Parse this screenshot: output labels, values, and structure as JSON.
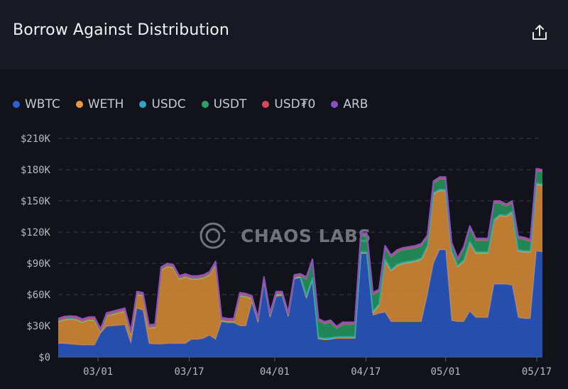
{
  "header": {
    "title": "Borrow Against Distribution",
    "share_icon": "share-icon"
  },
  "legend": [
    {
      "label": "WBTC",
      "color": "#2d5fd6"
    },
    {
      "label": "WETH",
      "color": "#ee9a3a"
    },
    {
      "label": "USDC",
      "color": "#2aa7c9"
    },
    {
      "label": "USDT",
      "color": "#27a567"
    },
    {
      "label": "USD₮0",
      "color": "#e0455e"
    },
    {
      "label": "ARB",
      "color": "#8a4fc7"
    }
  ],
  "watermark": {
    "text": "CHAOS LABS"
  },
  "chart_data": {
    "type": "area",
    "stacked": true,
    "title": "Borrow Against Distribution",
    "x_start": "02/22",
    "x_end": "05/18",
    "x_tick_labels": [
      "03/01",
      "03/17",
      "04/01",
      "04/17",
      "05/01",
      "05/17"
    ],
    "y_tick_labels": [
      "$0",
      "$30K",
      "$60K",
      "$90K",
      "$120K",
      "$150K",
      "$180K",
      "$210K"
    ],
    "ylim": [
      0,
      210000
    ],
    "grid": true,
    "legend_position": "top-left",
    "series": [
      {
        "name": "WBTC",
        "color": "#2d5fd6",
        "values": [
          13000,
          13000,
          12500,
          12000,
          11500,
          11500,
          11500,
          23000,
          29500,
          30000,
          30500,
          31000,
          13000,
          47000,
          45000,
          13000,
          12500,
          12500,
          13000,
          13000,
          13000,
          13000,
          17000,
          17000,
          18000,
          21000,
          17000,
          34000,
          33000,
          33000,
          30000,
          30000,
          52000,
          33000,
          72000,
          38000,
          58000,
          59000,
          39000,
          75000,
          76000,
          56000,
          74000,
          18000,
          17000,
          17500,
          18500,
          18500,
          18500,
          18500,
          100000,
          100000,
          40000,
          42000,
          43000,
          34000,
          34000,
          34000,
          34000,
          34000,
          34000,
          60000,
          90000,
          103000,
          103000,
          35000,
          34000,
          34000,
          44000,
          38000,
          38000,
          38000,
          70000,
          70000,
          70000,
          69000,
          38000,
          37000,
          37000,
          102000,
          101000
        ]
      },
      {
        "name": "WETH",
        "color": "#ee9a3a",
        "values": [
          21000,
          23000,
          24000,
          24000,
          22000,
          24000,
          24000,
          1000,
          10000,
          11000,
          12000,
          13000,
          9000,
          13000,
          14000,
          15000,
          16000,
          71000,
          74000,
          73000,
          62000,
          64000,
          58000,
          58000,
          58000,
          58000,
          72000,
          1000,
          1000,
          1000,
          29000,
          28000,
          4000,
          2000,
          2000,
          2000,
          2000,
          1000,
          1000,
          1000,
          1000,
          2000,
          1000,
          0,
          0,
          0,
          0,
          0,
          0,
          0,
          0,
          0,
          3000,
          8000,
          50000,
          49000,
          54000,
          56000,
          57000,
          58000,
          60000,
          46000,
          67000,
          57000,
          57000,
          66000,
          53000,
          58000,
          66000,
          62000,
          62000,
          62000,
          61000,
          66000,
          65000,
          70000,
          64000,
          64000,
          64000,
          64000,
          64000
        ]
      },
      {
        "name": "USDC",
        "color": "#2aa7c9",
        "values": [
          1000,
          1000,
          1000,
          1000,
          1000,
          1000,
          1000,
          1000,
          1000,
          1000,
          1000,
          1000,
          1000,
          1000,
          1000,
          1000,
          1000,
          1000,
          1000,
          1000,
          1000,
          1000,
          1000,
          1000,
          1000,
          1000,
          1000,
          1000,
          1000,
          1000,
          1000,
          1000,
          1000,
          1000,
          1000,
          1000,
          1000,
          1000,
          1000,
          1000,
          1000,
          1000,
          1000,
          1000,
          1000,
          1000,
          1000,
          1000,
          1000,
          1000,
          1000,
          1000,
          1000,
          1000,
          1000,
          1000,
          1000,
          1000,
          1000,
          1000,
          1000,
          1000,
          1000,
          1000,
          1000,
          1000,
          1000,
          1000,
          1000,
          1000,
          1000,
          1000,
          1000,
          1000,
          1000,
          1000,
          1000,
          1000,
          1000,
          1000,
          1000
        ]
      },
      {
        "name": "USDT",
        "color": "#27a567",
        "values": [
          0,
          0,
          0,
          0,
          0,
          0,
          0,
          0,
          0,
          0,
          0,
          0,
          0,
          0,
          0,
          0,
          0,
          0,
          0,
          0,
          0,
          0,
          0,
          0,
          0,
          0,
          0,
          0,
          0,
          0,
          0,
          0,
          0,
          0,
          0,
          0,
          0,
          0,
          0,
          0,
          0,
          16000,
          16000,
          16000,
          14000,
          15000,
          8000,
          12000,
          12000,
          12000,
          16000,
          16000,
          16000,
          12000,
          11000,
          12000,
          12000,
          12000,
          12000,
          12000,
          12000,
          8000,
          9000,
          10000,
          10000,
          6000,
          5000,
          11000,
          13000,
          11000,
          11000,
          11000,
          16000,
          11000,
          9000,
          8000,
          11000,
          11000,
          9000,
          12000,
          12000
        ]
      },
      {
        "name": "USD₮0",
        "color": "#e0455e",
        "values": [
          1000,
          1000,
          1000,
          1000,
          1000,
          1000,
          1000,
          1000,
          1000,
          1000,
          1000,
          1000,
          1000,
          1000,
          1000,
          1000,
          1000,
          1000,
          1000,
          1000,
          1000,
          1000,
          1000,
          1000,
          1000,
          1000,
          1000,
          1000,
          1000,
          1000,
          1000,
          1000,
          1000,
          1000,
          1000,
          1000,
          1000,
          1000,
          1000,
          1000,
          1000,
          1000,
          1000,
          1000,
          1000,
          1000,
          1000,
          1000,
          1000,
          1000,
          1000,
          1000,
          1000,
          1000,
          1000,
          1000,
          1000,
          1000,
          1000,
          1000,
          1000,
          1000,
          1000,
          1000,
          1000,
          1000,
          1000,
          1000,
          1000,
          1000,
          1000,
          1000,
          1000,
          1000,
          1000,
          1000,
          1000,
          1000,
          1000,
          1000,
          1000
        ]
      },
      {
        "name": "ARB",
        "color": "#8a4fc7",
        "values": [
          1000,
          1000,
          1000,
          1000,
          1000,
          1000,
          1000,
          1000,
          1000,
          1000,
          1000,
          1000,
          1000,
          1000,
          1000,
          1000,
          1000,
          1000,
          1000,
          1000,
          1000,
          1000,
          1000,
          1000,
          1000,
          1000,
          1000,
          1000,
          1000,
          1000,
          1000,
          1000,
          1000,
          1000,
          1000,
          1000,
          1000,
          1000,
          1000,
          1000,
          1000,
          1000,
          1000,
          1000,
          1000,
          1000,
          1000,
          1000,
          1000,
          1000,
          1000,
          1000,
          1000,
          1000,
          1000,
          1000,
          1000,
          1000,
          1000,
          1000,
          1000,
          1000,
          1000,
          1000,
          1000,
          1000,
          1000,
          1000,
          1000,
          1000,
          1000,
          1000,
          1000,
          1000,
          1000,
          1000,
          1000,
          1000,
          1000,
          1000,
          1000
        ]
      }
    ]
  }
}
